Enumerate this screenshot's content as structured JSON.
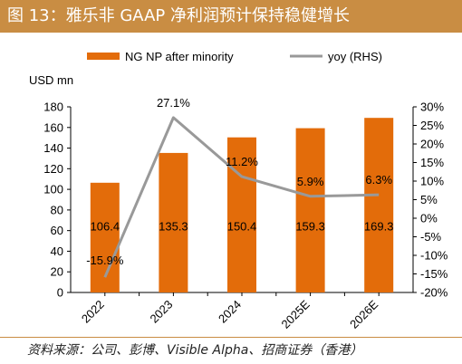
{
  "figure": {
    "title": "图 13：雅乐非 GAAP 净利润预计保持稳健增长",
    "source": "资料来源：公司、彭博、Visible Alpha、招商证券（香港）"
  },
  "chart_data": {
    "type": "bar",
    "categories": [
      "2022",
      "2023",
      "2024",
      "2025E",
      "2026E"
    ],
    "series": [
      {
        "name": "NG NP after minority",
        "type": "bar",
        "axis": "left",
        "color": "#e36c0a",
        "values": [
          106.4,
          135.3,
          150.4,
          159.3,
          169.3
        ],
        "labels": [
          "106.4",
          "135.3",
          "150.4",
          "159.3",
          "169.3"
        ]
      },
      {
        "name": "yoy (RHS)",
        "type": "line",
        "axis": "right",
        "color": "#999999",
        "values": [
          -15.9,
          27.1,
          11.2,
          5.9,
          6.3
        ],
        "labels": [
          "-15.9%",
          "27.1%",
          "11.2%",
          "5.9%",
          "6.3%"
        ]
      }
    ],
    "ylabel": "USD mn",
    "ylim": [
      0,
      180
    ],
    "yticks": [
      "0",
      "20",
      "40",
      "60",
      "80",
      "100",
      "120",
      "140",
      "160",
      "180"
    ],
    "y2lim": [
      -20,
      30
    ],
    "y2ticks": [
      "-20%",
      "-15%",
      "-10%",
      "-5%",
      "0%",
      "5%",
      "10%",
      "15%",
      "20%",
      "25%",
      "30%"
    ],
    "grid": false,
    "legend_position": "top"
  }
}
